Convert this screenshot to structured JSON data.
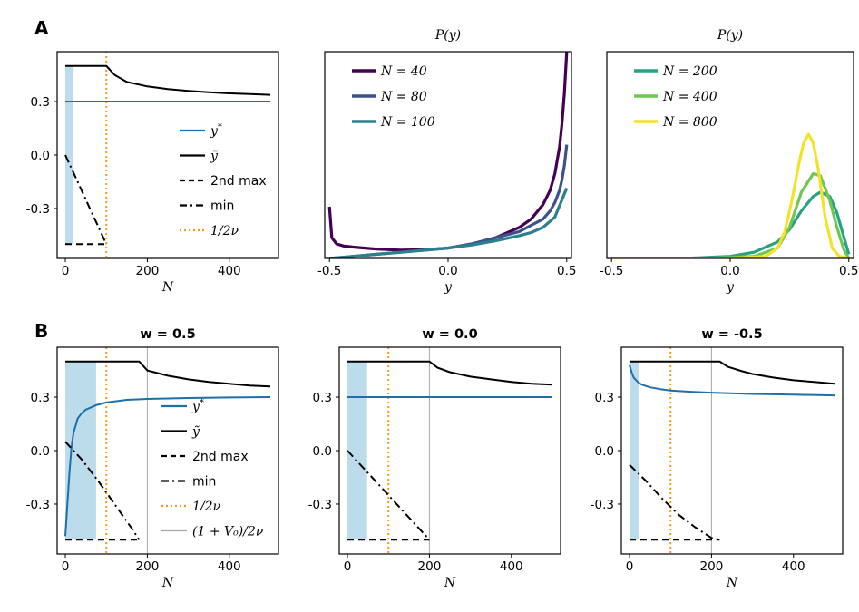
{
  "panel_labels": [
    "A",
    "B"
  ],
  "colors": {
    "y_star": "#1f6fa8",
    "y_tilde": "#000000",
    "half_nu": "#f59b1b",
    "shade": "#bcdcec",
    "vline": "#a8a8a8",
    "N40": "#440154",
    "N80": "#3b528b",
    "N100": "#2c7f8e",
    "N200": "#29a185",
    "N400": "#6fc750",
    "N800": "#f4e22a"
  },
  "chart_data": [
    {
      "id": "A1",
      "type": "line",
      "xlabel": "N",
      "xlim": [
        -20,
        520
      ],
      "ylim": [
        -0.58,
        0.58
      ],
      "xticks": [
        0,
        200,
        400
      ],
      "xticklabels": [
        "0",
        "200",
        "400"
      ],
      "yticks": [
        0.3,
        0.0,
        -0.3
      ],
      "yticklabels": [
        "0.3",
        "0.0",
        "-0.3"
      ],
      "shade": [
        0,
        20
      ],
      "vlines_dotted": [
        100
      ],
      "legend": {
        "placement": "center-right",
        "entries": [
          {
            "key": "y_star",
            "label": "y",
            "sup": "*",
            "style": "solid"
          },
          {
            "key": "y_tilde",
            "label": "ỹ",
            "style": "solid"
          },
          {
            "key": "second_max",
            "label": "2nd max",
            "style": "dashed"
          },
          {
            "key": "min",
            "label": "min",
            "style": "dashdot"
          },
          {
            "key": "half_nu",
            "label": "1/2ν",
            "style": "dotted"
          }
        ]
      },
      "series": {
        "y_star": {
          "x": [
            0,
            500
          ],
          "y": [
            0.3,
            0.3
          ]
        },
        "y_tilde": {
          "x": [
            0,
            100,
            120,
            150,
            200,
            250,
            300,
            350,
            400,
            450,
            500
          ],
          "y": [
            0.5,
            0.5,
            0.45,
            0.41,
            0.385,
            0.37,
            0.36,
            0.352,
            0.346,
            0.342,
            0.338
          ]
        },
        "second_max": {
          "x": [
            0,
            100
          ],
          "y": [
            -0.5,
            -0.5
          ]
        },
        "min": {
          "x": [
            0,
            20,
            40,
            60,
            80,
            100
          ],
          "y": [
            0.0,
            -0.1,
            -0.2,
            -0.3,
            -0.4,
            -0.5
          ]
        }
      }
    },
    {
      "id": "A2",
      "type": "line",
      "title": "P(y)",
      "xlabel": "y",
      "xlim": [
        -0.52,
        0.52
      ],
      "ylim": [
        0,
        1
      ],
      "xticks": [
        -0.5,
        0.0,
        0.5
      ],
      "xticklabels": [
        "-0.5",
        "0.0",
        "0.5"
      ],
      "legend": {
        "placement": "top-left",
        "entries": [
          {
            "key": "N40",
            "label": "N = 40"
          },
          {
            "key": "N80",
            "label": "N = 80"
          },
          {
            "key": "N100",
            "label": "N = 100"
          }
        ]
      },
      "series": {
        "N40": {
          "x": [
            -0.5,
            -0.49,
            -0.47,
            -0.44,
            -0.4,
            -0.35,
            -0.3,
            -0.2,
            -0.1,
            0.0,
            0.1,
            0.2,
            0.3,
            0.35,
            0.4,
            0.43,
            0.45,
            0.47,
            0.48,
            0.49,
            0.5
          ],
          "y": [
            0.25,
            0.1,
            0.07,
            0.06,
            0.055,
            0.05,
            0.045,
            0.04,
            0.042,
            0.05,
            0.07,
            0.1,
            0.15,
            0.19,
            0.26,
            0.33,
            0.41,
            0.54,
            0.65,
            0.8,
            1.0
          ]
        },
        "N80": {
          "x": [
            -0.5,
            -0.4,
            -0.3,
            -0.2,
            -0.1,
            0.0,
            0.1,
            0.2,
            0.3,
            0.35,
            0.4,
            0.43,
            0.45,
            0.47,
            0.48,
            0.49,
            0.5
          ],
          "y": [
            0.0,
            0.01,
            0.02,
            0.03,
            0.04,
            0.05,
            0.07,
            0.1,
            0.13,
            0.16,
            0.19,
            0.23,
            0.27,
            0.33,
            0.38,
            0.45,
            0.55
          ]
        },
        "N100": {
          "x": [
            -0.5,
            -0.4,
            -0.3,
            -0.2,
            -0.1,
            0.0,
            0.1,
            0.2,
            0.3,
            0.35,
            0.4,
            0.45,
            0.5
          ],
          "y": [
            0.0,
            0.01,
            0.02,
            0.03,
            0.04,
            0.05,
            0.065,
            0.085,
            0.11,
            0.125,
            0.15,
            0.2,
            0.34
          ]
        }
      }
    },
    {
      "id": "A3",
      "type": "line",
      "title": "P(y)",
      "xlabel": "y",
      "xlim": [
        -0.52,
        0.52
      ],
      "ylim": [
        0,
        1
      ],
      "xticks": [
        -0.5,
        0.0,
        0.5
      ],
      "xticklabels": [
        "-0.5",
        "0.0",
        "0.5"
      ],
      "legend": {
        "placement": "top-left",
        "entries": [
          {
            "key": "N200",
            "label": "N = 200"
          },
          {
            "key": "N400",
            "label": "N = 400"
          },
          {
            "key": "N800",
            "label": "N = 800"
          }
        ]
      },
      "series": {
        "N200": {
          "x": [
            -0.5,
            -0.2,
            0.0,
            0.1,
            0.2,
            0.25,
            0.3,
            0.35,
            0.38,
            0.42,
            0.45,
            0.48,
            0.5
          ],
          "y": [
            0.0,
            0.0,
            0.01,
            0.03,
            0.08,
            0.14,
            0.23,
            0.3,
            0.32,
            0.3,
            0.22,
            0.1,
            0.02
          ]
        },
        "N400": {
          "x": [
            -0.5,
            -0.1,
            0.1,
            0.2,
            0.25,
            0.3,
            0.35,
            0.38,
            0.42,
            0.45,
            0.48,
            0.5
          ],
          "y": [
            0.0,
            0.0,
            0.01,
            0.05,
            0.15,
            0.32,
            0.41,
            0.4,
            0.28,
            0.15,
            0.04,
            0.0
          ]
        },
        "N800": {
          "x": [
            -0.5,
            0.0,
            0.15,
            0.2,
            0.23,
            0.26,
            0.29,
            0.31,
            0.33,
            0.35,
            0.37,
            0.4,
            0.43,
            0.46,
            0.5
          ],
          "y": [
            0.0,
            0.0,
            0.01,
            0.05,
            0.13,
            0.28,
            0.46,
            0.56,
            0.6,
            0.56,
            0.44,
            0.2,
            0.05,
            0.01,
            0.0
          ]
        }
      }
    },
    {
      "id": "B1",
      "type": "line",
      "title": "w = 0.5",
      "xlabel": "N",
      "xlim": [
        -20,
        520
      ],
      "ylim": [
        -0.58,
        0.58
      ],
      "xticks": [
        0,
        200,
        400
      ],
      "xticklabels": [
        "0",
        "200",
        "400"
      ],
      "yticks": [
        0.3,
        0.0,
        -0.3
      ],
      "yticklabels": [
        "0.3",
        "0.0",
        "-0.3"
      ],
      "shade": [
        0,
        75
      ],
      "vlines_dotted": [
        100
      ],
      "vlines_thin": [
        200
      ],
      "legend": {
        "placement": "center-right",
        "entries": [
          {
            "key": "y_star",
            "label": "y",
            "sup": "*",
            "style": "solid"
          },
          {
            "key": "y_tilde",
            "label": "ỹ",
            "style": "solid"
          },
          {
            "key": "second_max",
            "label": "2nd max",
            "style": "dashed"
          },
          {
            "key": "min",
            "label": "min",
            "style": "dashdot"
          },
          {
            "key": "half_nu",
            "label": "1/2ν",
            "style": "dotted"
          },
          {
            "key": "v0",
            "label": "(1 + V₀)/2ν",
            "style": "thin"
          }
        ]
      },
      "series": {
        "y_star": {
          "x": [
            0,
            5,
            10,
            15,
            20,
            30,
            40,
            50,
            75,
            100,
            150,
            200,
            300,
            400,
            500
          ],
          "y": [
            -0.48,
            -0.3,
            -0.12,
            0.02,
            0.1,
            0.18,
            0.21,
            0.23,
            0.255,
            0.27,
            0.285,
            0.29,
            0.295,
            0.298,
            0.3
          ]
        },
        "y_tilde": {
          "x": [
            0,
            180,
            200,
            250,
            300,
            350,
            400,
            450,
            500
          ],
          "y": [
            0.5,
            0.5,
            0.45,
            0.42,
            0.4,
            0.385,
            0.375,
            0.365,
            0.36
          ]
        },
        "second_max": {
          "x": [
            0,
            180
          ],
          "y": [
            -0.5,
            -0.5
          ]
        },
        "min": {
          "x": [
            0,
            40,
            80,
            120,
            160,
            180
          ],
          "y": [
            0.05,
            -0.05,
            -0.17,
            -0.3,
            -0.43,
            -0.5
          ]
        }
      }
    },
    {
      "id": "B2",
      "type": "line",
      "title": "w = 0.0",
      "xlabel": "N",
      "xlim": [
        -20,
        520
      ],
      "ylim": [
        -0.58,
        0.58
      ],
      "xticks": [
        0,
        200,
        400
      ],
      "xticklabels": [
        "0",
        "200",
        "400"
      ],
      "yticks": [
        0.3,
        0.0,
        -0.3
      ],
      "yticklabels": [
        "0.3",
        "0.0",
        "-0.3"
      ],
      "shade": [
        0,
        48
      ],
      "vlines_dotted": [
        100
      ],
      "vlines_thin": [
        200
      ],
      "series": {
        "y_star": {
          "x": [
            0,
            500
          ],
          "y": [
            0.3,
            0.3
          ]
        },
        "y_tilde": {
          "x": [
            0,
            200,
            220,
            250,
            300,
            350,
            400,
            450,
            500
          ],
          "y": [
            0.5,
            0.5,
            0.465,
            0.44,
            0.415,
            0.4,
            0.385,
            0.375,
            0.37
          ]
        },
        "second_max": {
          "x": [
            0,
            200
          ],
          "y": [
            -0.5,
            -0.5
          ]
        },
        "min": {
          "x": [
            0,
            40,
            80,
            120,
            160,
            200
          ],
          "y": [
            0.0,
            -0.1,
            -0.2,
            -0.3,
            -0.4,
            -0.5
          ]
        }
      }
    },
    {
      "id": "B3",
      "type": "line",
      "title": "w = -0.5",
      "xlabel": "N",
      "xlim": [
        -20,
        520
      ],
      "ylim": [
        -0.58,
        0.58
      ],
      "xticks": [
        0,
        200,
        400
      ],
      "xticklabels": [
        "0",
        "200",
        "400"
      ],
      "yticks": [
        0.3,
        0.0,
        -0.3
      ],
      "yticklabels": [
        "0.3",
        "0.0",
        "-0.3"
      ],
      "shade": [
        0,
        22
      ],
      "vlines_dotted": [
        100
      ],
      "vlines_thin": [
        200
      ],
      "series": {
        "y_star": {
          "x": [
            0,
            5,
            10,
            20,
            30,
            50,
            75,
            100,
            150,
            200,
            300,
            400,
            500
          ],
          "y": [
            0.48,
            0.44,
            0.41,
            0.385,
            0.37,
            0.355,
            0.345,
            0.337,
            0.33,
            0.325,
            0.318,
            0.314,
            0.31
          ]
        },
        "y_tilde": {
          "x": [
            0,
            220,
            240,
            275,
            300,
            350,
            400,
            450,
            500
          ],
          "y": [
            0.5,
            0.5,
            0.47,
            0.445,
            0.43,
            0.41,
            0.395,
            0.385,
            0.375
          ]
        },
        "second_max": {
          "x": [
            0,
            220
          ],
          "y": [
            -0.5,
            -0.5
          ]
        },
        "min": {
          "x": [
            0,
            40,
            80,
            120,
            160,
            200,
            220
          ],
          "y": [
            -0.08,
            -0.17,
            -0.27,
            -0.36,
            -0.43,
            -0.49,
            -0.5
          ]
        }
      }
    }
  ]
}
